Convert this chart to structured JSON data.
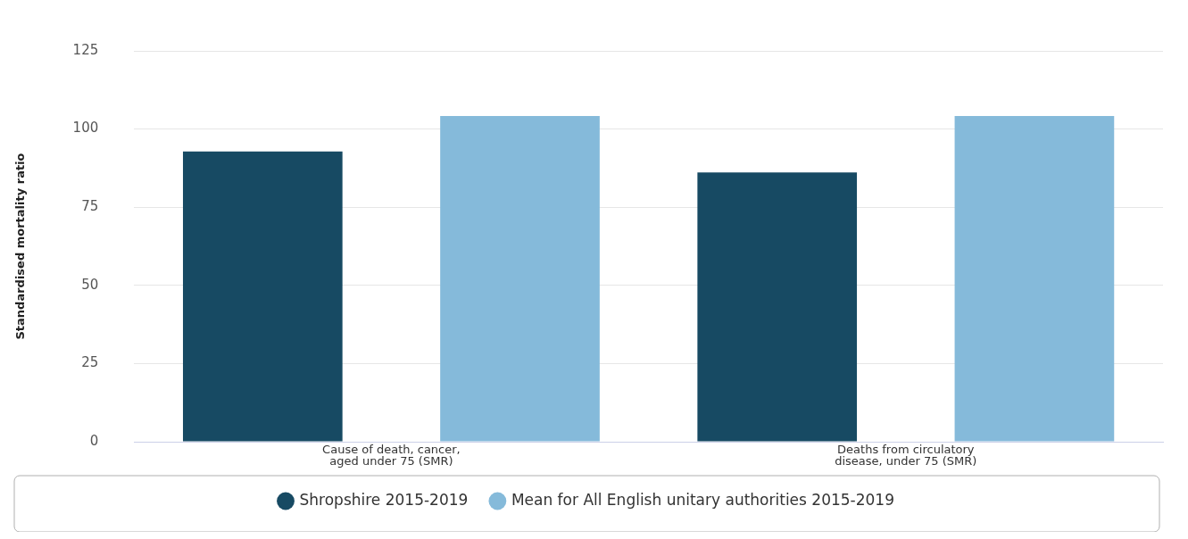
{
  "chart_data": {
    "type": "bar",
    "ylabel": "Standardised mortality ratio",
    "categories": [
      "Cause of death, cancer, aged under 75 (SMR)",
      "Deaths from circulatory disease, under 75 (SMR)"
    ],
    "series": [
      {
        "name": "Shropshire 2015-2019",
        "color": "#174a63",
        "values": [
          92.8,
          86.1
        ]
      },
      {
        "name": "Mean for All English unitary authorities 2015-2019",
        "color": "#85bada",
        "values": [
          104.2,
          104.2
        ]
      }
    ],
    "ylim": [
      0,
      125
    ],
    "yticks": [
      0,
      25,
      50,
      75,
      100,
      125
    ],
    "grid": "y",
    "legend": "bottom"
  }
}
